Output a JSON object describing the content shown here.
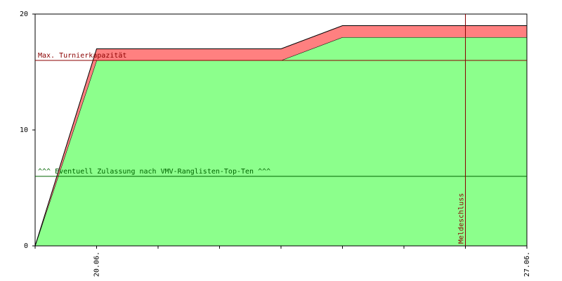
{
  "chart_data": {
    "type": "area",
    "categories": [
      null,
      "20.06.",
      null,
      null,
      null,
      null,
      null,
      null,
      "27.06."
    ],
    "series": [
      {
        "color": "#8cff8c",
        "values": [
          0,
          16,
          16,
          16,
          16,
          18,
          18,
          18,
          18
        ]
      },
      {
        "color": "#ff8080",
        "values": [
          0,
          1,
          1,
          1,
          1,
          1,
          1,
          1,
          1
        ]
      }
    ],
    "stacked": true,
    "ylim": [
      0,
      20
    ],
    "yticks": [
      0,
      10,
      20
    ],
    "hlines": [
      {
        "value": 16,
        "label": "Max. Turnierkapazität",
        "color": "#8b0000"
      },
      {
        "value": 6,
        "label": "^^^ Eventuell Zulassung nach VMV-Ranglisten-Top-Ten ^^^",
        "color": "#006400"
      }
    ],
    "vlines": [
      {
        "index": 7,
        "label": "Meldeschluss",
        "color": "#8b0000"
      }
    ]
  }
}
